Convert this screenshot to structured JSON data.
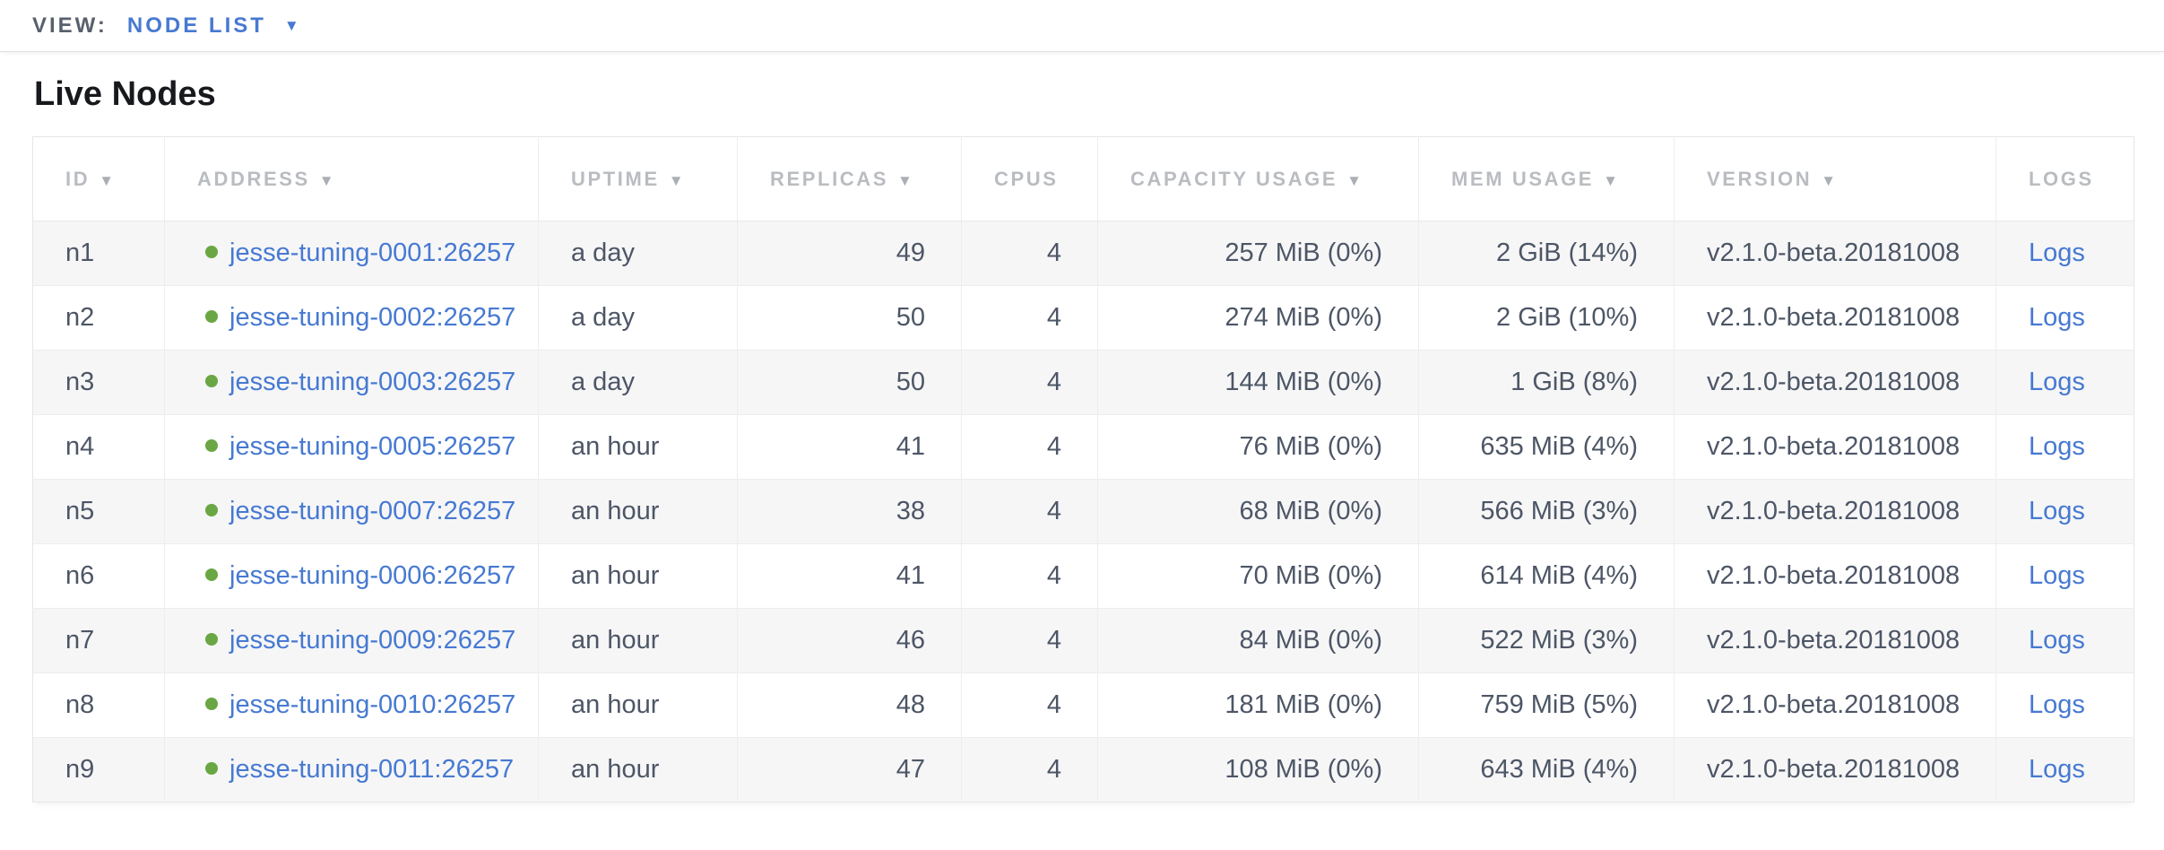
{
  "colors": {
    "link_blue": "#4679d2",
    "live_green": "#6aa744",
    "header_gray": "#b9bcc0",
    "row_alt_bg": "#f6f6f7"
  },
  "icons": {
    "caret_down": "▼",
    "sort_arrow": "▼"
  },
  "view_bar": {
    "label": "VIEW:",
    "selected": "NODE LIST"
  },
  "page": {
    "title": "Live Nodes"
  },
  "table": {
    "columns": [
      {
        "label": "ID",
        "sortable": true
      },
      {
        "label": "ADDRESS",
        "sortable": true
      },
      {
        "label": "UPTIME",
        "sortable": true
      },
      {
        "label": "REPLICAS",
        "sortable": true
      },
      {
        "label": "CPUS",
        "sortable": false
      },
      {
        "label": "CAPACITY USAGE",
        "sortable": true
      },
      {
        "label": "MEM USAGE",
        "sortable": true
      },
      {
        "label": "VERSION",
        "sortable": true
      },
      {
        "label": "LOGS",
        "sortable": false
      }
    ],
    "rows": [
      {
        "id": "n1",
        "status": "live",
        "address": "jesse-tuning-0001:26257",
        "uptime": "a day",
        "replicas": "49",
        "cpus": "4",
        "capacity_usage": "257 MiB (0%)",
        "mem_usage": "2 GiB (14%)",
        "version": "v2.1.0-beta.20181008",
        "logs_label": "Logs"
      },
      {
        "id": "n2",
        "status": "live",
        "address": "jesse-tuning-0002:26257",
        "uptime": "a day",
        "replicas": "50",
        "cpus": "4",
        "capacity_usage": "274 MiB (0%)",
        "mem_usage": "2 GiB (10%)",
        "version": "v2.1.0-beta.20181008",
        "logs_label": "Logs"
      },
      {
        "id": "n3",
        "status": "live",
        "address": "jesse-tuning-0003:26257",
        "uptime": "a day",
        "replicas": "50",
        "cpus": "4",
        "capacity_usage": "144 MiB (0%)",
        "mem_usage": "1 GiB (8%)",
        "version": "v2.1.0-beta.20181008",
        "logs_label": "Logs"
      },
      {
        "id": "n4",
        "status": "live",
        "address": "jesse-tuning-0005:26257",
        "uptime": "an hour",
        "replicas": "41",
        "cpus": "4",
        "capacity_usage": "76 MiB (0%)",
        "mem_usage": "635 MiB (4%)",
        "version": "v2.1.0-beta.20181008",
        "logs_label": "Logs"
      },
      {
        "id": "n5",
        "status": "live",
        "address": "jesse-tuning-0007:26257",
        "uptime": "an hour",
        "replicas": "38",
        "cpus": "4",
        "capacity_usage": "68 MiB (0%)",
        "mem_usage": "566 MiB (3%)",
        "version": "v2.1.0-beta.20181008",
        "logs_label": "Logs"
      },
      {
        "id": "n6",
        "status": "live",
        "address": "jesse-tuning-0006:26257",
        "uptime": "an hour",
        "replicas": "41",
        "cpus": "4",
        "capacity_usage": "70 MiB (0%)",
        "mem_usage": "614 MiB (4%)",
        "version": "v2.1.0-beta.20181008",
        "logs_label": "Logs"
      },
      {
        "id": "n7",
        "status": "live",
        "address": "jesse-tuning-0009:26257",
        "uptime": "an hour",
        "replicas": "46",
        "cpus": "4",
        "capacity_usage": "84 MiB (0%)",
        "mem_usage": "522 MiB (3%)",
        "version": "v2.1.0-beta.20181008",
        "logs_label": "Logs"
      },
      {
        "id": "n8",
        "status": "live",
        "address": "jesse-tuning-0010:26257",
        "uptime": "an hour",
        "replicas": "48",
        "cpus": "4",
        "capacity_usage": "181 MiB (0%)",
        "mem_usage": "759 MiB (5%)",
        "version": "v2.1.0-beta.20181008",
        "logs_label": "Logs"
      },
      {
        "id": "n9",
        "status": "live",
        "address": "jesse-tuning-0011:26257",
        "uptime": "an hour",
        "replicas": "47",
        "cpus": "4",
        "capacity_usage": "108 MiB (0%)",
        "mem_usage": "643 MiB (4%)",
        "version": "v2.1.0-beta.20181008",
        "logs_label": "Logs"
      }
    ]
  }
}
